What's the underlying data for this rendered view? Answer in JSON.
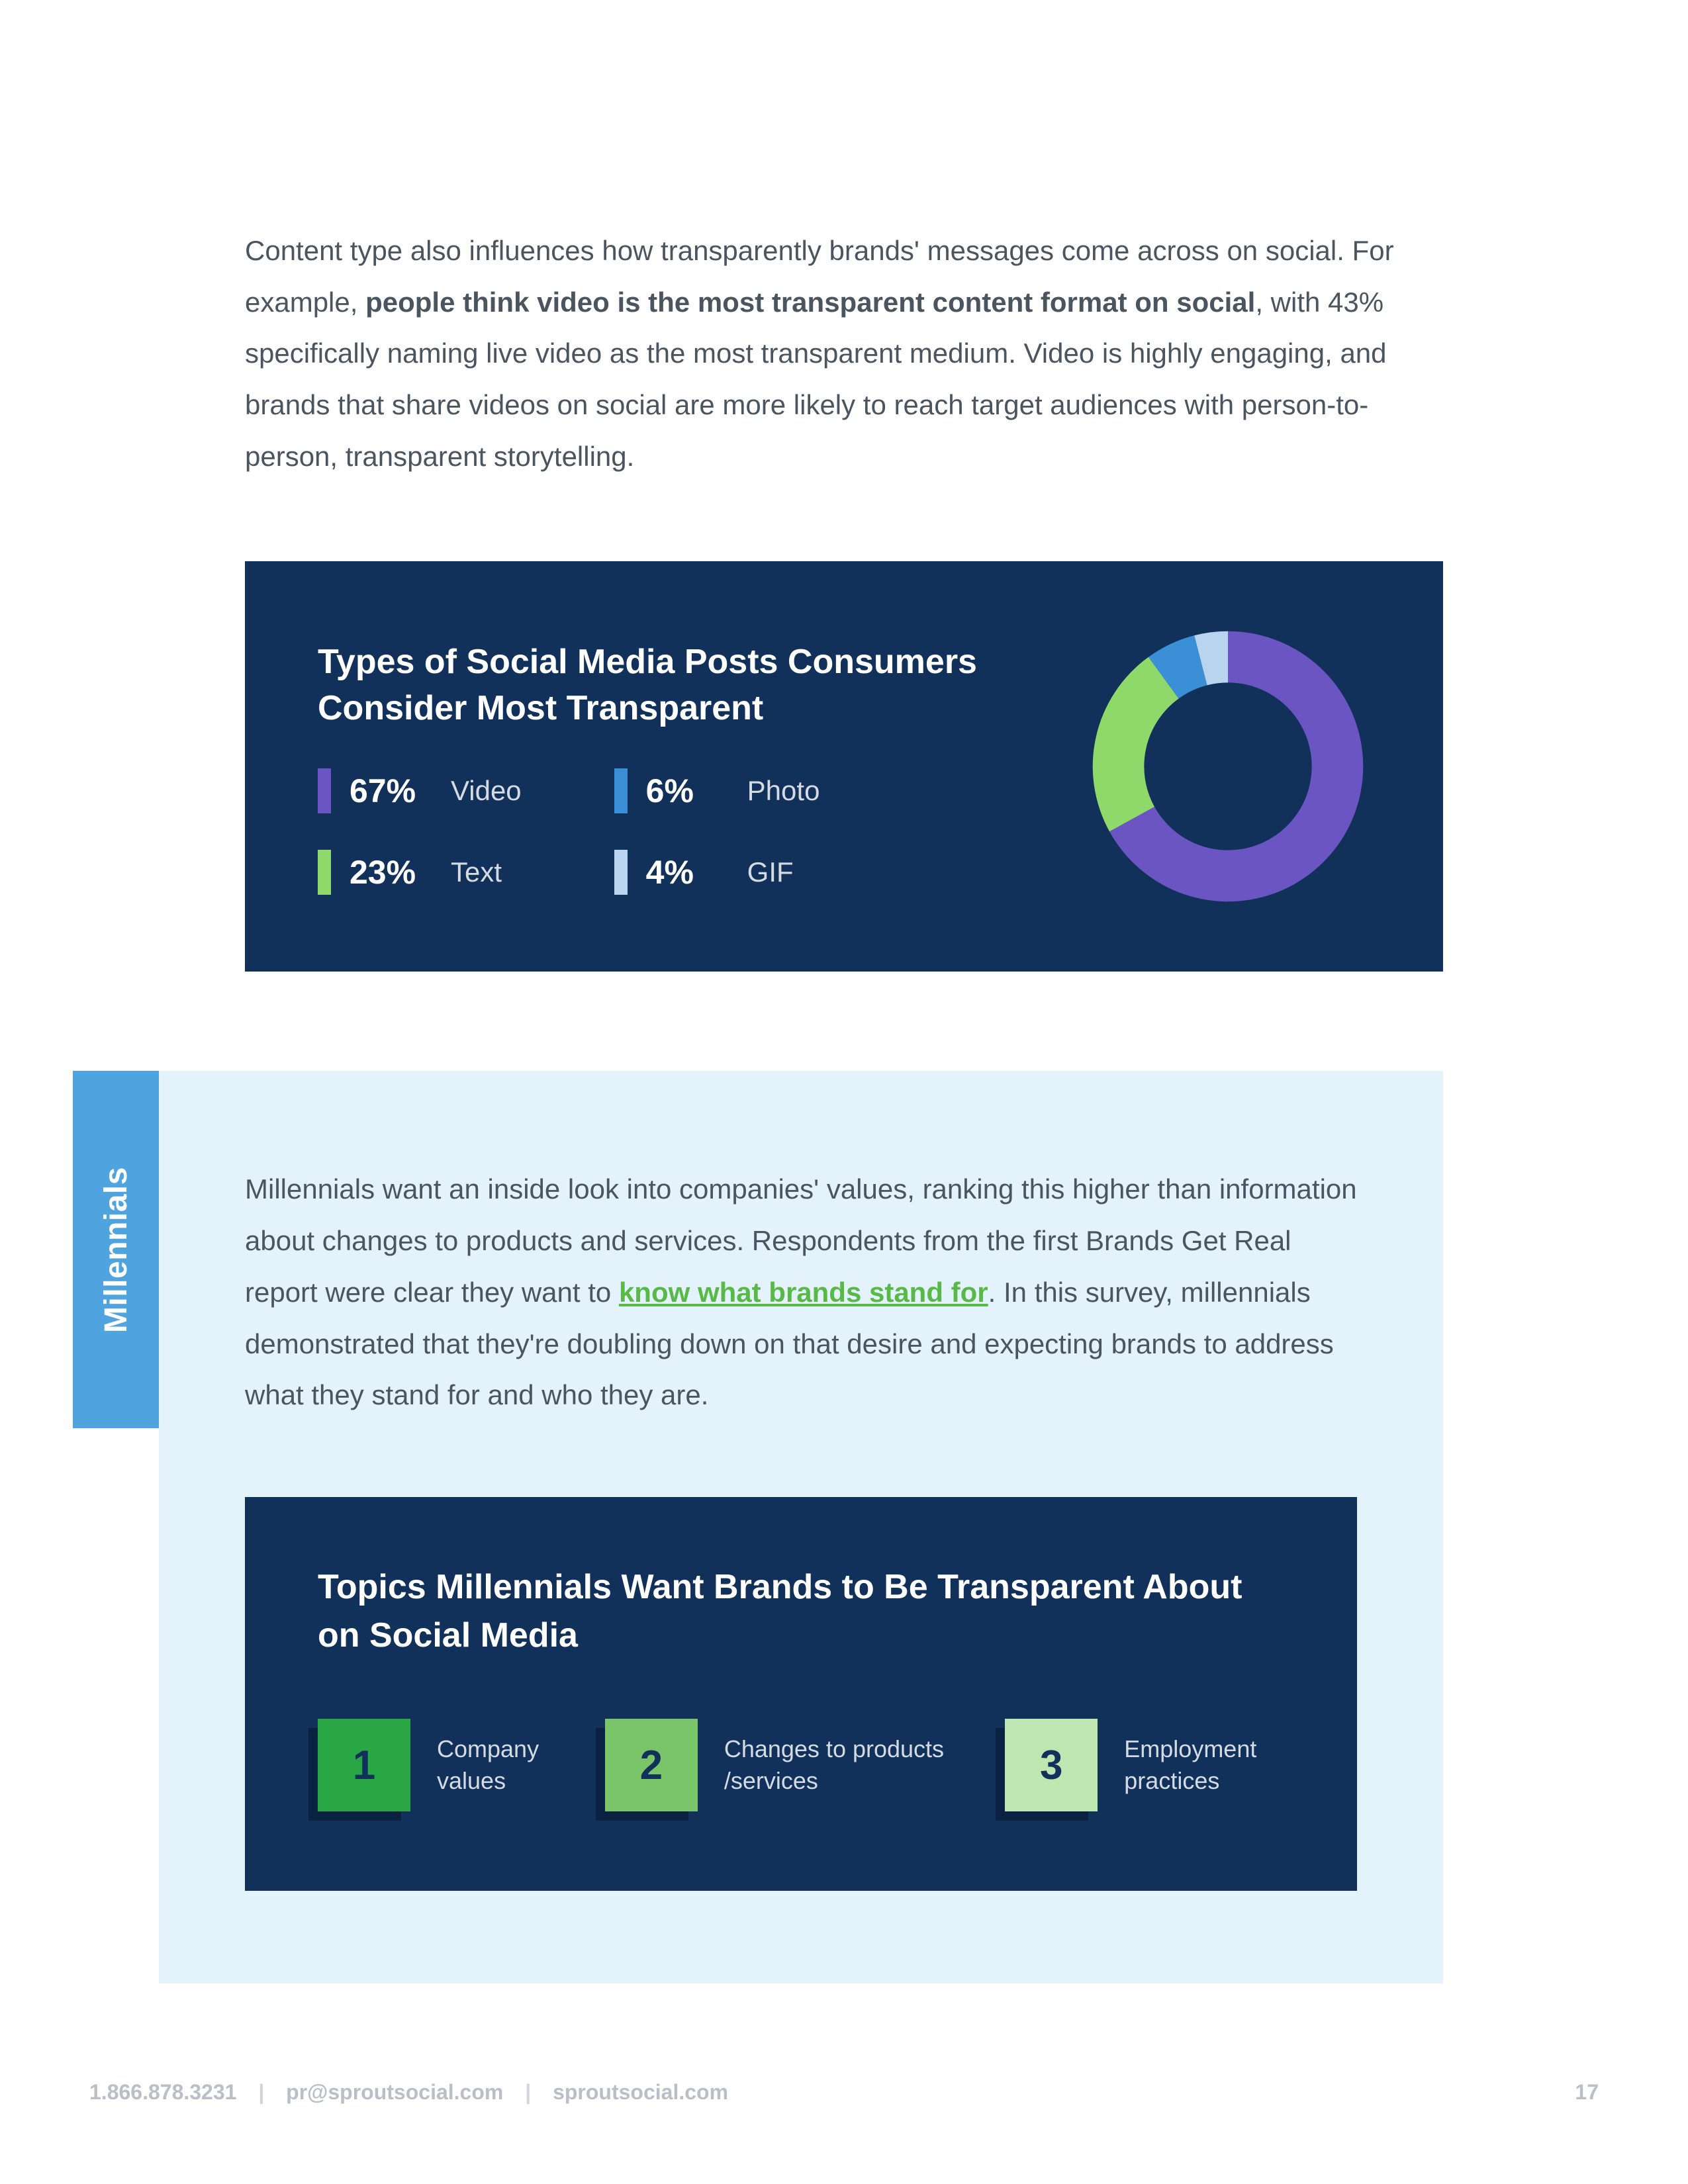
{
  "intro": {
    "part1": "Content type also influences how transparently brands' messages come across on social. For example, ",
    "bold": "people think video is the most transparent content format on social",
    "part2": ", with 43% specifically naming live video as the most transparent medium. Video is highly engaging, and brands that share videos on social are more likely to reach target audiences with person-to-person, transparent storytelling."
  },
  "chart": {
    "title": "Types of Social Media Posts Consumers Consider Most Transparent",
    "background": "#12315a",
    "title_color": "#ffffff",
    "title_fontsize": 52,
    "donut_inner_ratio": 0.62,
    "items": [
      {
        "pct": "67%",
        "value": 67,
        "label": "Video",
        "color": "#6a55c2"
      },
      {
        "pct": "23%",
        "value": 23,
        "label": "Text",
        "color": "#8fd96a"
      },
      {
        "pct": "6%",
        "value": 6,
        "label": "Photo",
        "color": "#3a8fd6"
      },
      {
        "pct": "4%",
        "value": 4,
        "label": "GIF",
        "color": "#b8d4ee"
      }
    ],
    "layout_order": [
      0,
      2,
      1,
      3
    ]
  },
  "millennials": {
    "tab_label": "Millennials",
    "tab_bg": "#4fa4e0",
    "panel_bg": "#e3f2fb",
    "text_pre": "Millennials want an inside look into companies' values, ranking this higher than information about changes to products and services. Respondents from the first Brands Get Real report were clear they want to ",
    "link_text": "know what brands stand for",
    "link_color": "#59b947",
    "text_post": ". In this survey, millennials demonstrated that they're doubling down on that desire and expecting brands to address what they stand for and who they are."
  },
  "topics": {
    "title": "Topics Millennials Want Brands to Be Transparent About on Social Media",
    "background": "#12315a",
    "shadow_color": "#0b2142",
    "items": [
      {
        "num": "1",
        "label": "Company values",
        "box_color": "#2aa745"
      },
      {
        "num": "2",
        "label": "Changes to products /services",
        "box_color": "#7ac46a"
      },
      {
        "num": "3",
        "label": "Employment practices",
        "box_color": "#bfe6b0"
      }
    ]
  },
  "footer": {
    "phone": "1.866.878.3231",
    "email": "pr@sproutsocial.com",
    "site": "sproutsocial.com",
    "page": "17",
    "sep": "|"
  }
}
